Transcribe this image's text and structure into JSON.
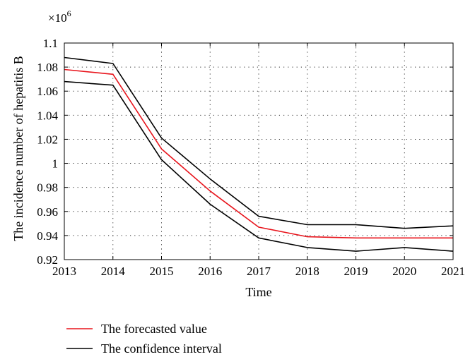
{
  "chart_data": {
    "type": "line",
    "xlabel": "Time",
    "ylabel": "The incidence number of hepatitis B",
    "y_multiplier": "×10",
    "y_multiplier_exp": "6",
    "xlim": [
      2013,
      2021
    ],
    "ylim": [
      0.92,
      1.1
    ],
    "grid": true,
    "grid_style": "dotted",
    "legend_position": "below",
    "x_ticks": [
      "2013",
      "2014",
      "2015",
      "2016",
      "2017",
      "2018",
      "2019",
      "2020",
      "2021"
    ],
    "y_ticks": [
      "0.92",
      "0.94",
      "0.96",
      "0.98",
      "1",
      "1.02",
      "1.04",
      "1.06",
      "1.08",
      "1.1"
    ],
    "x": [
      2013,
      2014,
      2015,
      2016,
      2017,
      2018,
      2019,
      2020,
      2021
    ],
    "series": [
      {
        "name": "The forecasted value",
        "color": "#e8141c",
        "values": [
          1.078,
          1.074,
          1.012,
          0.977,
          0.947,
          0.939,
          0.938,
          0.938,
          0.938
        ]
      },
      {
        "name": "The confidence interval",
        "color": "#000000",
        "values": [
          1.088,
          1.083,
          1.021,
          0.987,
          0.956,
          0.949,
          0.949,
          0.946,
          0.948
        ]
      },
      {
        "name": "",
        "color": "#000000",
        "values": [
          1.068,
          1.065,
          1.003,
          0.966,
          0.938,
          0.93,
          0.927,
          0.93,
          0.927
        ]
      }
    ],
    "legend": [
      {
        "label": "The forecasted value",
        "color": "#e8141c"
      },
      {
        "label": "The confidence interval",
        "color": "#000000"
      }
    ]
  }
}
